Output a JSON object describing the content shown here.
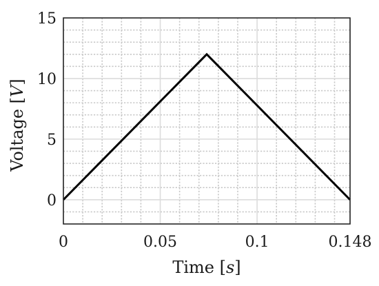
{
  "chart_data": {
    "type": "line",
    "title": "",
    "xlabel": {
      "prefix": "Time ",
      "open": "[",
      "unit": "s",
      "close": "]"
    },
    "ylabel": {
      "prefix": "Voltage ",
      "open": "[",
      "unit": "V",
      "close": "]"
    },
    "xlim": [
      0,
      0.148
    ],
    "ylim": [
      -2,
      15
    ],
    "xticks": [
      0,
      0.05,
      0.1,
      0.148
    ],
    "xtick_labels": [
      "0",
      "0.05",
      "0.1",
      "0.148"
    ],
    "yticks": [
      0,
      5,
      10,
      15
    ],
    "ytick_labels": [
      "0",
      "5",
      "10",
      "15"
    ],
    "grid": "major solid, minor dotted",
    "series": [
      {
        "x": [
          0,
          0.074,
          0.148
        ],
        "y": [
          0,
          12,
          0
        ],
        "color": "#000000"
      }
    ]
  }
}
